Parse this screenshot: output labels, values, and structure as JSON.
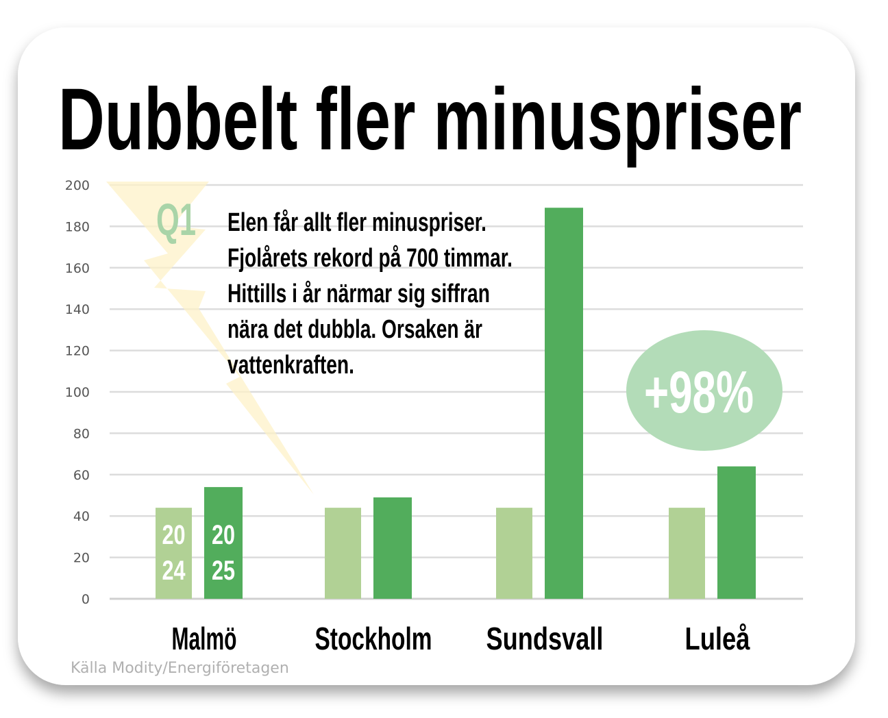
{
  "chart_data": {
    "type": "bar",
    "title": "Dubbelt fler minuspriser",
    "categories": [
      "Malmö",
      "Stockholm",
      "Sundsvall",
      "Luleå"
    ],
    "series": [
      {
        "name": "2024",
        "label_lines": [
          "20",
          "24"
        ],
        "color": "#b1d195",
        "values": [
          44,
          44,
          44,
          44
        ]
      },
      {
        "name": "2025",
        "label_lines": [
          "20",
          "25"
        ],
        "color": "#52ad5c",
        "values": [
          54,
          49,
          189,
          64
        ]
      }
    ],
    "ylim": [
      0,
      200
    ],
    "yticks": [
      0,
      20,
      40,
      60,
      80,
      100,
      120,
      140,
      160,
      180,
      200
    ],
    "grid": true,
    "xlabel": "",
    "ylabel": "",
    "annotations": {
      "quarter": "Q1",
      "text_lines": [
        "Elen får allt fler minuspriser.",
        "Fjolårets rekord på 700 timmar.",
        "Hittills i år närmar sig siffran",
        "nära det dubbla. Orsaken är",
        "vattenkraften."
      ],
      "badge": "+98%",
      "badge_color": "#b3dcb8"
    },
    "source": "Källa Modity/Energiföretagen"
  }
}
